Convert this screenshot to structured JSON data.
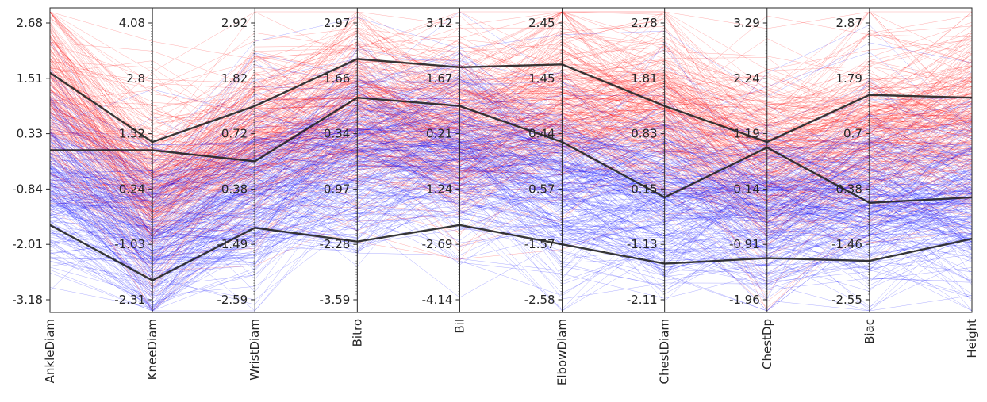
{
  "chart_data": {
    "type": "parallel-coordinates",
    "axes": [
      {
        "label": "AnkleDiam",
        "ticks": [
          "2.68",
          "1.51",
          "0.33",
          "-0.84",
          "-2.01",
          "-3.18"
        ]
      },
      {
        "label": "KneeDiam",
        "ticks": [
          "4.08",
          "2.8",
          "1.52",
          "0.24",
          "-1.03",
          "-2.31"
        ]
      },
      {
        "label": "WristDiam",
        "ticks": [
          "2.92",
          "1.82",
          "0.72",
          "-0.38",
          "-1.49",
          "-2.59"
        ]
      },
      {
        "label": "Bitro",
        "ticks": [
          "2.97",
          "1.66",
          "0.34",
          "-0.97",
          "-2.28",
          "-3.59"
        ]
      },
      {
        "label": "Bil",
        "ticks": [
          "3.12",
          "1.67",
          "0.21",
          "-1.24",
          "-2.69",
          "-4.14"
        ]
      },
      {
        "label": "ElbowDiam",
        "ticks": [
          "2.45",
          "1.45",
          "0.44",
          "-0.57",
          "-1.57",
          "-2.58"
        ]
      },
      {
        "label": "ChestDiam",
        "ticks": [
          "2.78",
          "1.81",
          "0.83",
          "-0.15",
          "-1.13",
          "-2.11"
        ]
      },
      {
        "label": "ChestDp",
        "ticks": [
          "3.29",
          "2.24",
          "1.19",
          "0.14",
          "-0.91",
          "-1.96"
        ]
      },
      {
        "label": "Biac",
        "ticks": [
          "2.87",
          "1.79",
          "0.7",
          "-0.38",
          "-1.46",
          "-2.55"
        ]
      },
      {
        "label": "Height",
        "ticks": []
      }
    ],
    "tick_positions": [
      0,
      0.2,
      0.4,
      0.6,
      0.8,
      1.0
    ],
    "series": [
      {
        "color": "#ff0000",
        "lines": 250,
        "center": [
          0.25,
          0.58,
          0.4,
          0.3,
          0.38,
          0.28,
          0.3,
          0.5,
          0.4,
          0.35
        ]
      },
      {
        "color": "#0000ff",
        "lines": 250,
        "center": [
          0.58,
          0.8,
          0.62,
          0.5,
          0.48,
          0.62,
          0.65,
          0.7,
          0.68,
          0.66
        ]
      }
    ],
    "highlight_lines": [
      [
        0.18,
        0.43,
        0.3,
        0.13,
        0.16,
        0.15,
        0.3,
        0.43,
        0.26,
        0.27
      ],
      [
        0.46,
        0.46,
        0.5,
        0.27,
        0.3,
        0.43,
        0.63,
        0.45,
        0.65,
        0.63
      ],
      [
        0.73,
        0.93,
        0.74,
        0.79,
        0.73,
        0.8,
        0.87,
        0.85,
        0.86,
        0.78
      ]
    ],
    "highlight_color": "#222222"
  }
}
